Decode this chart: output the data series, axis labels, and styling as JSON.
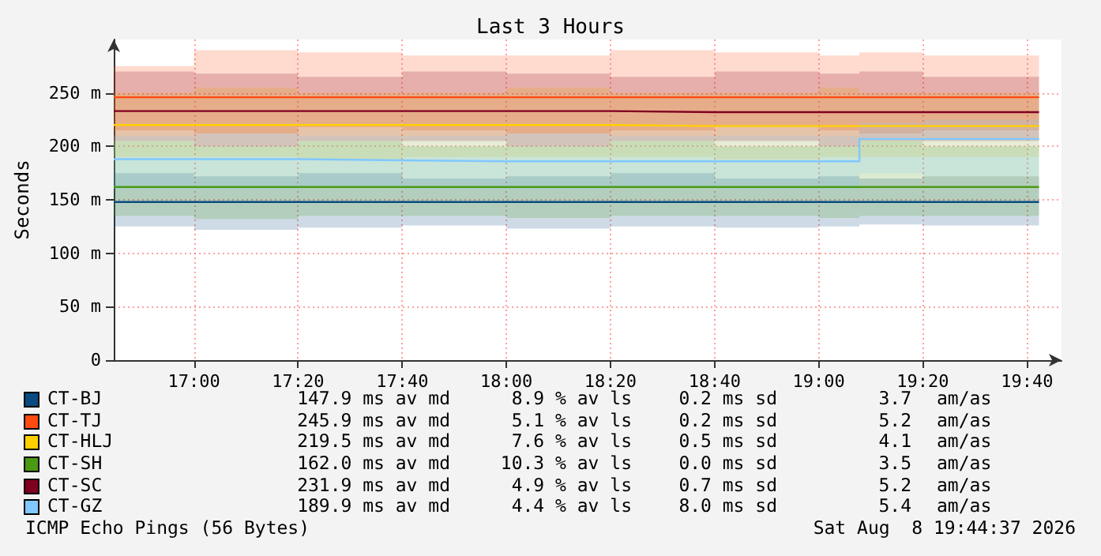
{
  "chart_data": {
    "type": "step",
    "title": "Last 3 Hours",
    "ylabel": "Seconds",
    "x": [
      16.743,
      17.0,
      17.333,
      17.667,
      18.0,
      18.333,
      18.667,
      19.0,
      19.13,
      19.333,
      19.705
    ],
    "xlim": [
      16.743,
      19.777
    ],
    "xticks": [
      {
        "value": 17,
        "label": "17:00"
      },
      {
        "value": 17.333,
        "label": "17:20"
      },
      {
        "value": 17.667,
        "label": "17:40"
      },
      {
        "value": 18,
        "label": "18:00"
      },
      {
        "value": 18.333,
        "label": "18:20"
      },
      {
        "value": 18.667,
        "label": "18:40"
      },
      {
        "value": 19,
        "label": "19:00"
      },
      {
        "value": 19.333,
        "label": "19:20"
      },
      {
        "value": 19.667,
        "label": "19:40"
      }
    ],
    "ylim": [
      0,
      300
    ],
    "yticks": [
      0,
      {
        "value": 50,
        "label": "50 m"
      },
      {
        "value": 100,
        "label": "100 m"
      },
      {
        "value": 150,
        "label": "150 m"
      },
      {
        "value": 200,
        "label": "200 m"
      },
      {
        "value": 250,
        "label": "250 m"
      }
    ],
    "series": [
      {
        "name": "CT-BJ",
        "color": "#0a4a80",
        "values": [
          148,
          148,
          148,
          148,
          148,
          148,
          148,
          148,
          148,
          148,
          148
        ],
        "lower": [
          125,
          122,
          124,
          126,
          123,
          125,
          124,
          125,
          127,
          126,
          125
        ],
        "upper": [
          175,
          172,
          175,
          170,
          172,
          175,
          170,
          172,
          170,
          172,
          170
        ]
      },
      {
        "name": "CT-TJ",
        "color": "#ff4a10",
        "values": [
          246,
          246,
          246,
          246,
          246,
          246,
          246,
          246,
          246,
          246,
          246
        ],
        "lower": [
          215,
          212,
          218,
          215,
          212,
          215,
          218,
          215,
          212,
          215,
          215
        ],
        "upper": [
          275,
          290,
          288,
          285,
          285,
          290,
          288,
          285,
          288,
          285,
          285
        ]
      },
      {
        "name": "CT-HLJ",
        "color": "#ffd000",
        "values": [
          220,
          220,
          220,
          220,
          220,
          219,
          219,
          219,
          219,
          219,
          219
        ],
        "lower": [
          190,
          190,
          188,
          190,
          190,
          190,
          188,
          190,
          190,
          190,
          190
        ],
        "upper": [
          250,
          255,
          250,
          250,
          255,
          250,
          250,
          255,
          250,
          250,
          250
        ]
      },
      {
        "name": "CT-SH",
        "color": "#4a9a14",
        "values": [
          162,
          162,
          162,
          162,
          162,
          162,
          162,
          162,
          162,
          162,
          162
        ],
        "lower": [
          135,
          132,
          135,
          135,
          133,
          135,
          135,
          133,
          135,
          135,
          135
        ],
        "upper": [
          205,
          200,
          205,
          200,
          200,
          205,
          200,
          200,
          205,
          200,
          200
        ]
      },
      {
        "name": "CT-SC",
        "color": "#800020",
        "values": [
          233,
          233,
          233,
          233,
          233,
          232,
          232,
          232,
          232,
          232,
          232
        ],
        "lower": [
          205,
          200,
          205,
          205,
          200,
          205,
          205,
          200,
          205,
          205,
          205
        ],
        "upper": [
          270,
          268,
          265,
          270,
          268,
          265,
          270,
          268,
          270,
          265,
          265
        ]
      },
      {
        "name": "CT-GZ",
        "color": "#80c8ff",
        "values": [
          188,
          188,
          187,
          186,
          186,
          186,
          186,
          186,
          207,
          207,
          207
        ],
        "lower": [
          160,
          160,
          162,
          160,
          160,
          162,
          160,
          160,
          175,
          172,
          175
        ],
        "upper": [
          210,
          212,
          210,
          210,
          212,
          210,
          210,
          210,
          222,
          225,
          222
        ]
      }
    ],
    "grid": true,
    "legend": "bottom",
    "marker": "none",
    "annotations": [
      "147.9 ms av md",
      "8.9 % av ls",
      "0.2 ms sd",
      "3.7",
      "am/as",
      "245.9 ms av md",
      "5.1 % av ls",
      "0.2 ms sd",
      "5.2",
      "am/as",
      "219.5 ms av md",
      "7.6 % av ls",
      "0.5 ms sd",
      "4.1",
      "am/as",
      "162.0 ms av md",
      "10.3 % av ls",
      "0.0 ms sd",
      "3.5",
      "am/as",
      "231.9 ms av md",
      "4.9 % av ls",
      "0.7 ms sd",
      "5.2",
      "am/as",
      "189.9 ms av md",
      "4.4 % av ls",
      "8.0 ms sd",
      "5.4",
      "am/as",
      "ICMP Echo Pings (56 Bytes)",
      "Sat Aug  8 19:44:37 2026"
    ]
  }
}
